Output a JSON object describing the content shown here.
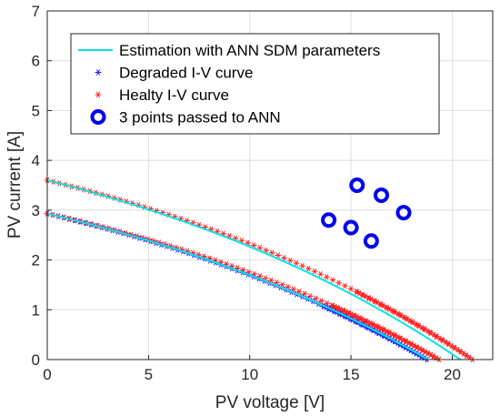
{
  "chart_data": {
    "type": "line",
    "xlabel": "PV voltage [V]",
    "ylabel": "PV current [A]",
    "xlim": [
      0,
      22
    ],
    "ylim": [
      0,
      7
    ],
    "xticks": [
      0,
      5,
      10,
      15,
      20
    ],
    "yticks": [
      0,
      1,
      2,
      3,
      4,
      5,
      6,
      7
    ],
    "grid": true,
    "legend_position": "top-right",
    "series": [
      {
        "name": "Estimation with ANN SDM parameters",
        "marker": "line",
        "color": "#00e5e5",
        "curves": [
          {
            "isc": 3.6,
            "voc": 20.4,
            "a": 0.95,
            "b": 0.048
          },
          {
            "isc": 2.93,
            "voc": 18.8,
            "a": 0.92,
            "b": 0.048
          }
        ]
      },
      {
        "name": "Degraded I-V curve",
        "marker": "asterisk",
        "color": "#1a1aff",
        "curves": [
          {
            "isc": 2.93,
            "voc": 18.75,
            "a": 0.92,
            "b": 0.048
          }
        ]
      },
      {
        "name": "Healty I-V curve",
        "marker": "asterisk",
        "color": "#ff2020",
        "curves": [
          {
            "isc": 3.6,
            "voc": 21.0,
            "a": 1.0,
            "b": 0.048
          },
          {
            "isc": 2.93,
            "voc": 19.35,
            "a": 0.93,
            "b": 0.048
          }
        ]
      },
      {
        "name": "3 points passed to ANN",
        "marker": "circle",
        "color": "#0000ee",
        "points": [
          {
            "x": 15.3,
            "y": 3.5
          },
          {
            "x": 16.5,
            "y": 3.3
          },
          {
            "x": 17.6,
            "y": 2.95
          },
          {
            "x": 13.9,
            "y": 2.8
          },
          {
            "x": 15.0,
            "y": 2.65
          },
          {
            "x": 16.0,
            "y": 2.38
          }
        ]
      }
    ]
  }
}
